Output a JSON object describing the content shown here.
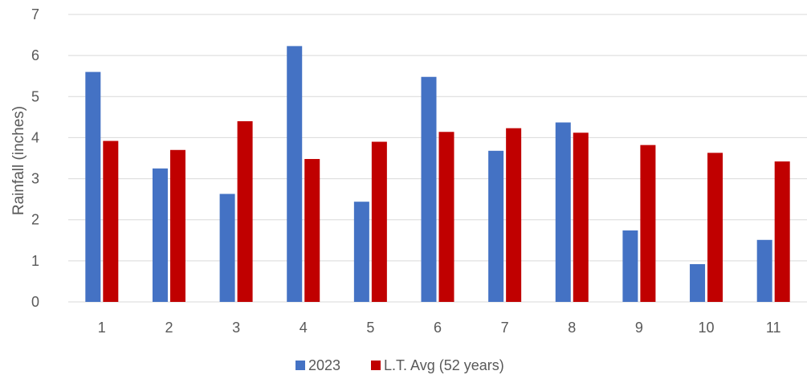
{
  "chart_data": {
    "type": "bar",
    "title": "",
    "xlabel": "",
    "ylabel": "Rainfall (inches)",
    "categories": [
      "1",
      "2",
      "3",
      "4",
      "5",
      "6",
      "7",
      "8",
      "9",
      "10",
      "11"
    ],
    "series": [
      {
        "name": "2023",
        "color": "#4472C4",
        "values": [
          5.6,
          3.25,
          2.63,
          6.23,
          2.44,
          5.48,
          3.68,
          4.37,
          1.74,
          0.92,
          1.51
        ]
      },
      {
        "name": "L.T. Avg (52 years)",
        "color": "#C00000",
        "values": [
          3.92,
          3.7,
          4.4,
          3.48,
          3.9,
          4.14,
          4.23,
          4.12,
          3.82,
          3.63,
          3.42
        ]
      }
    ],
    "ylim": [
      0,
      7
    ],
    "yticks": [
      0,
      1,
      2,
      3,
      4,
      5,
      6,
      7
    ],
    "grid": true,
    "gridColor": "#D9D9D9",
    "legend": "bottom-center"
  }
}
